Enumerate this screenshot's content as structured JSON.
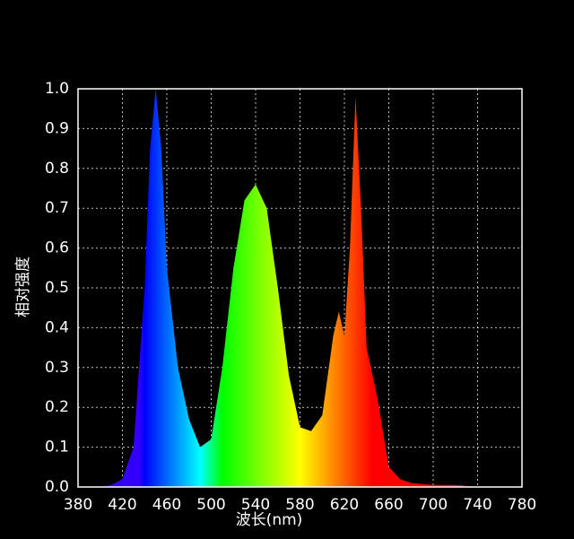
{
  "chart_data": {
    "type": "area",
    "xlabel": "波长(nm)",
    "ylabel": "相对强度",
    "x": [
      380,
      390,
      400,
      410,
      420,
      430,
      440,
      445,
      450,
      455,
      460,
      470,
      480,
      490,
      500,
      510,
      520,
      530,
      540,
      550,
      560,
      570,
      580,
      590,
      600,
      610,
      615,
      620,
      625,
      630,
      635,
      640,
      650,
      660,
      670,
      680,
      700,
      720,
      740,
      760,
      780
    ],
    "values": [
      0,
      0,
      0,
      0.005,
      0.02,
      0.1,
      0.5,
      0.85,
      1.0,
      0.85,
      0.55,
      0.3,
      0.17,
      0.1,
      0.12,
      0.3,
      0.55,
      0.72,
      0.76,
      0.7,
      0.5,
      0.28,
      0.15,
      0.14,
      0.18,
      0.38,
      0.44,
      0.38,
      0.6,
      0.98,
      0.7,
      0.35,
      0.22,
      0.05,
      0.02,
      0.01,
      0.005,
      0.005,
      0,
      0,
      0
    ],
    "xlim": [
      380,
      780
    ],
    "xticks": [
      380,
      420,
      460,
      500,
      540,
      580,
      620,
      660,
      700,
      740,
      780
    ],
    "ylim": [
      0,
      1
    ],
    "yticks": [
      {
        "value": 0,
        "label": "0.0"
      },
      0.1,
      0.2,
      0.3,
      0.4,
      0.5,
      0.6,
      0.7,
      0.8,
      0.9,
      {
        "value": 1,
        "label": "1.0"
      }
    ],
    "grid": true
  }
}
